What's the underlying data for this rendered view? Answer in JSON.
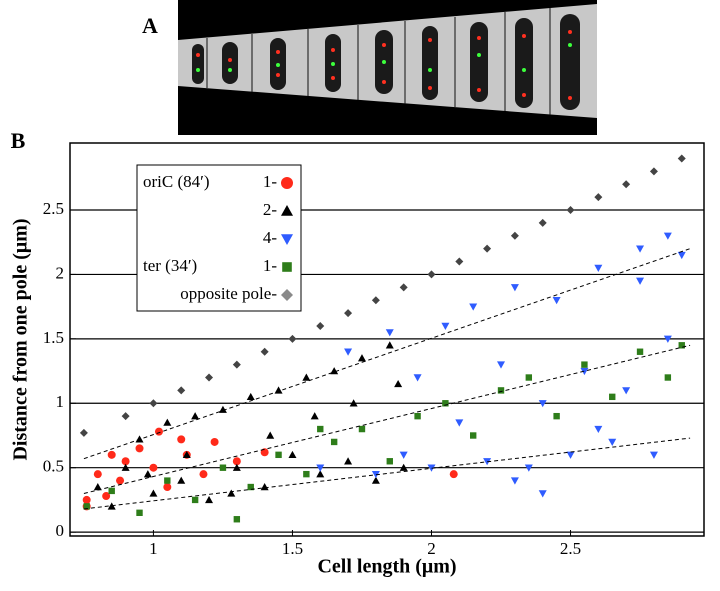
{
  "panel_labels": [
    "A",
    "B"
  ],
  "chart_data": {
    "type": "scatter",
    "x_label": "Cell length (μm)",
    "y_label": "Distance from one pole (μm)",
    "xlim": [
      0.7,
      2.98
    ],
    "ylim": [
      -0.03,
      3.02
    ],
    "xticks": [
      1,
      1.5,
      2,
      2.5
    ],
    "yticks": [
      0,
      0.5,
      1,
      1.5,
      2,
      2.5
    ],
    "grid": true,
    "series": [
      {
        "group": "oriC (84′)",
        "name": "1-",
        "color": "#ff2a1a",
        "marker": "circle",
        "x": [
          0.76,
          0.76,
          0.8,
          0.83,
          0.85,
          0.88,
          0.9,
          0.95,
          1.0,
          1.02,
          1.05,
          1.1,
          1.12,
          1.18,
          1.22,
          1.3,
          1.4,
          2.08
        ],
        "values": [
          0.2,
          0.25,
          0.45,
          0.28,
          0.6,
          0.4,
          0.55,
          0.65,
          0.5,
          0.78,
          0.35,
          0.72,
          0.6,
          0.45,
          0.7,
          0.55,
          0.62,
          0.45
        ]
      },
      {
        "name": "2-",
        "color": "#000000",
        "marker": "triangle-up",
        "x": [
          0.8,
          0.85,
          0.9,
          0.95,
          1.0,
          1.05,
          1.1,
          1.15,
          1.2,
          1.25,
          1.3,
          1.35,
          1.4,
          1.45,
          1.5,
          1.55,
          1.6,
          1.65,
          1.7,
          1.75,
          1.8,
          1.85,
          1.9,
          0.98,
          1.12,
          1.28,
          1.42,
          1.58,
          1.72,
          1.88
        ],
        "values": [
          0.35,
          0.2,
          0.5,
          0.72,
          0.3,
          0.85,
          0.4,
          0.9,
          0.25,
          0.95,
          0.5,
          1.05,
          0.35,
          1.1,
          0.6,
          1.2,
          0.45,
          1.25,
          0.55,
          1.35,
          0.4,
          1.45,
          0.5,
          0.45,
          0.6,
          0.3,
          0.75,
          0.9,
          1.0,
          1.15
        ]
      },
      {
        "name": "4-",
        "color": "#2f5cff",
        "marker": "triangle-down",
        "x": [
          1.6,
          1.7,
          1.8,
          1.85,
          1.9,
          1.95,
          2.0,
          2.05,
          2.1,
          2.15,
          2.2,
          2.25,
          2.3,
          2.35,
          2.4,
          2.45,
          2.5,
          2.55,
          2.6,
          2.65,
          2.7,
          2.75,
          2.8,
          2.85,
          2.9,
          2.3,
          2.4,
          2.6,
          2.75,
          2.85
        ],
        "values": [
          0.5,
          1.4,
          0.45,
          1.55,
          0.6,
          1.2,
          0.5,
          1.6,
          0.85,
          1.75,
          0.55,
          1.3,
          1.9,
          0.5,
          1.0,
          1.8,
          0.6,
          1.25,
          2.05,
          0.7,
          1.1,
          2.2,
          0.6,
          1.5,
          2.15,
          0.4,
          0.3,
          0.8,
          1.95,
          2.3
        ]
      },
      {
        "group": "ter (34′)",
        "name": "1-",
        "color": "#2e7d1a",
        "marker": "square",
        "x": [
          0.76,
          0.85,
          0.95,
          1.05,
          1.15,
          1.25,
          1.35,
          1.45,
          1.55,
          1.65,
          1.75,
          1.85,
          1.95,
          2.05,
          2.15,
          2.25,
          2.35,
          2.45,
          2.55,
          2.65,
          2.75,
          2.85,
          2.9,
          1.3,
          1.6
        ],
        "values": [
          0.2,
          0.32,
          0.15,
          0.4,
          0.25,
          0.5,
          0.35,
          0.6,
          0.45,
          0.7,
          0.8,
          0.55,
          0.9,
          1.0,
          0.75,
          1.1,
          1.2,
          0.9,
          1.3,
          1.05,
          1.4,
          1.2,
          1.45,
          0.1,
          0.8
        ]
      },
      {
        "name": "opposite pole-",
        "color": "#444444",
        "legend_color": "#8a8a8a",
        "marker": "diamond",
        "x": [
          0.75,
          0.9,
          1.0,
          1.1,
          1.2,
          1.3,
          1.4,
          1.5,
          1.6,
          1.7,
          1.8,
          1.9,
          2.0,
          2.1,
          2.2,
          2.3,
          2.4,
          2.5,
          2.6,
          2.7,
          2.8,
          2.9
        ],
        "values": [
          0.77,
          0.9,
          1.0,
          1.1,
          1.2,
          1.3,
          1.4,
          1.5,
          1.6,
          1.7,
          1.8,
          1.9,
          2.0,
          2.1,
          2.2,
          2.3,
          2.4,
          2.5,
          2.6,
          2.7,
          2.8,
          2.9
        ]
      }
    ],
    "trend_lines": [
      {
        "x": [
          0.75,
          2.93
        ],
        "values": [
          0.57,
          2.2
        ]
      },
      {
        "x": [
          0.75,
          2.93
        ],
        "values": [
          0.3,
          1.45
        ]
      },
      {
        "x": [
          0.75,
          2.93
        ],
        "values": [
          0.18,
          0.73
        ]
      }
    ]
  }
}
